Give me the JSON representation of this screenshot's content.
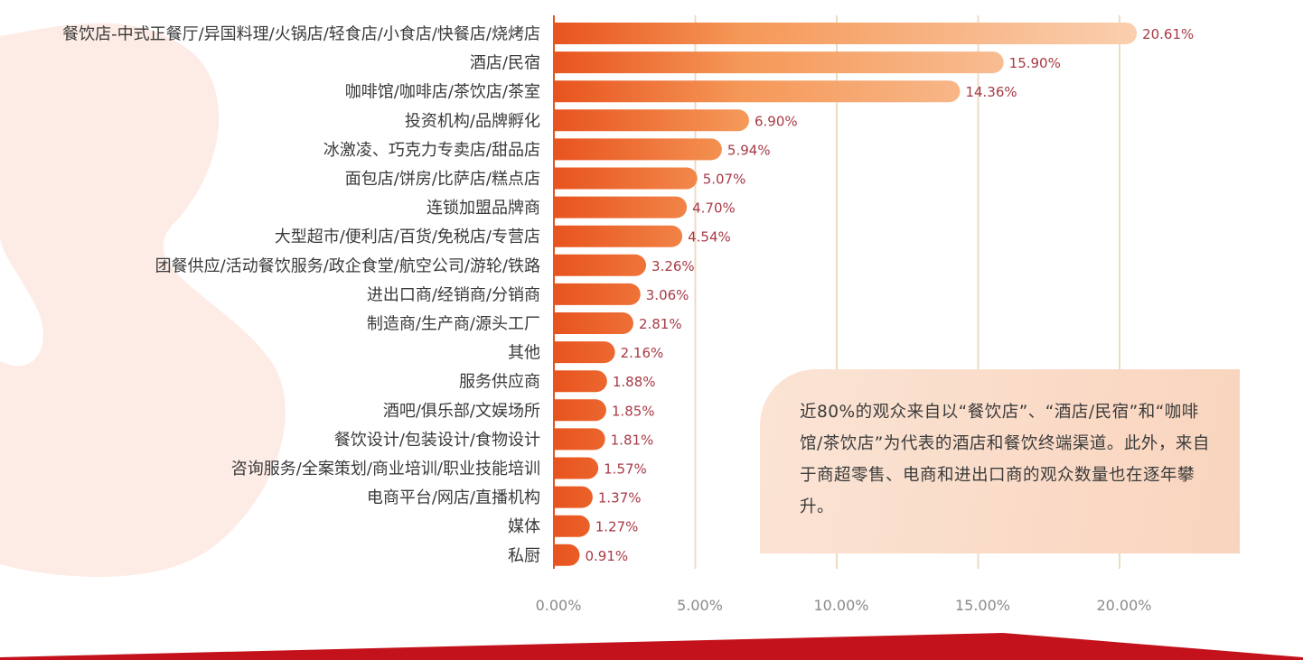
{
  "colors": {
    "bar_start": "#e8531e",
    "bar_end": "#f9c29a",
    "axis_line": "#e8531e",
    "grid_line": "#ecdcc4",
    "value_label": "#a83a45",
    "note_bg": "#f9d8c4",
    "blob": "#fdece6",
    "bottom_band": "#c3121b"
  },
  "note": {
    "text": "近80%的观众来自以“餐饮店”、“酒店/民宿”和“咖啡馆/茶饮店”为代表的酒店和餐饮终端渠道。此外，来自于商超零售、电商和进出口商的观众数量也在逐年攀升。"
  },
  "chart_data": {
    "type": "bar",
    "orientation": "horizontal",
    "categories": [
      "餐饮店-中式正餐厅/异国料理/火锅店/轻食店/小食店/快餐店/烧烤店",
      "酒店/民宿",
      "咖啡馆/咖啡店/茶饮店/茶室",
      "投资机构/品牌孵化",
      "冰激凌、巧克力专卖店/甜品店",
      "面包店/饼房/比萨店/糕点店",
      "连锁加盟品牌商",
      "大型超市/便利店/百货/免税店/专营店",
      "团餐供应/活动餐饮服务/政企食堂/航空公司/游轮/铁路",
      "进出口商/经销商/分销商",
      "制造商/生产商/源头工厂",
      "其他",
      "服务供应商",
      "酒吧/俱乐部/文娱场所",
      "餐饮设计/包装设计/食物设计",
      "咨询服务/全案策划/商业培训/职业技能培训",
      "电商平台/网店/直播机构",
      "媒体",
      "私厨"
    ],
    "values": [
      20.61,
      15.9,
      14.36,
      6.9,
      5.94,
      5.07,
      4.7,
      4.54,
      3.26,
      3.06,
      2.81,
      2.16,
      1.88,
      1.85,
      1.81,
      1.57,
      1.37,
      1.27,
      0.91
    ],
    "value_labels": [
      "20.61%",
      "15.90%",
      "14.36%",
      "6.90%",
      "5.94%",
      "5.07%",
      "4.70%",
      "4.54%",
      "3.26%",
      "3.06%",
      "2.81%",
      "2.16%",
      "1.88%",
      "1.85%",
      "1.81%",
      "1.57%",
      "1.37%",
      "1.27%",
      "0.91%"
    ],
    "xlim": [
      0,
      20
    ],
    "xticks": [
      0,
      5,
      10,
      15,
      20
    ],
    "xtick_labels": [
      "0.00%",
      "5.00%",
      "10.00%",
      "15.00%",
      "20.00%"
    ],
    "grid": "vertical",
    "legend": "none"
  }
}
